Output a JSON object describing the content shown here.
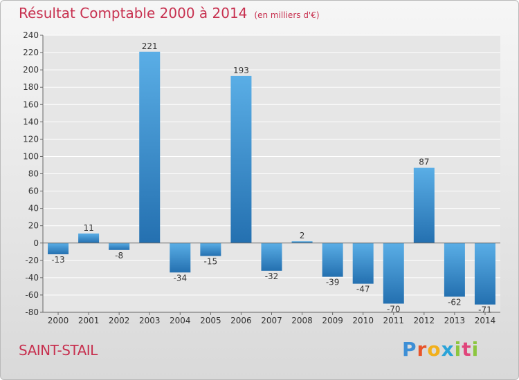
{
  "title": "Résultat Comptable 2000 à 2014",
  "subtitle": "(en milliers d'€)",
  "commune": "SAINT-STAIL",
  "logo": "Proxiti",
  "colors": {
    "bar_top": "#5aaee6",
    "bar_bottom": "#2470b0",
    "title": "#c7304f",
    "grid": "#ffffff",
    "plot_bg": "#e6e6e6"
  },
  "chart_data": {
    "type": "bar",
    "title": "Résultat Comptable 2000 à 2014",
    "subtitle": "(en milliers d'€)",
    "categories": [
      "2000",
      "2001",
      "2002",
      "2003",
      "2004",
      "2005",
      "2006",
      "2007",
      "2008",
      "2009",
      "2010",
      "2011",
      "2012",
      "2013",
      "2014"
    ],
    "values": [
      -13,
      11,
      -8,
      221,
      -34,
      -15,
      193,
      -32,
      2,
      -39,
      -47,
      -70,
      87,
      -62,
      -71
    ],
    "ylim": [
      -80,
      240
    ],
    "yticks": [
      -80,
      -60,
      -40,
      -20,
      0,
      20,
      40,
      60,
      80,
      100,
      120,
      140,
      160,
      180,
      200,
      220,
      240
    ],
    "grid": true,
    "xlabel": "",
    "ylabel": ""
  }
}
